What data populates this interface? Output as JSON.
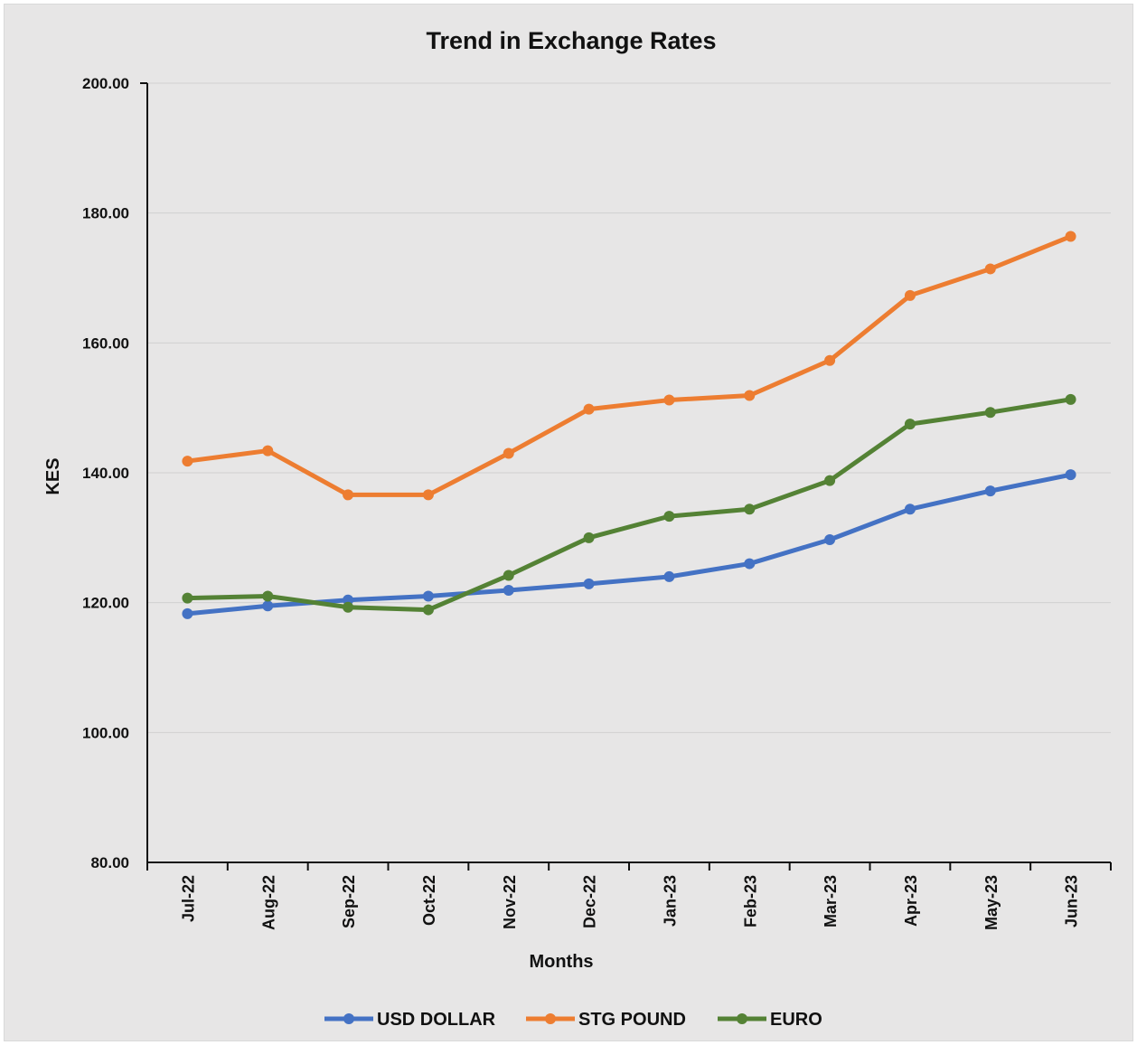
{
  "chart_data": {
    "type": "line",
    "title": "Trend in Exchange Rates",
    "xlabel": "Months",
    "ylabel": "KES",
    "categories": [
      "Jul-22",
      "Aug-22",
      "Sep-22",
      "Oct-22",
      "Nov-22",
      "Dec-22",
      "Jan-23",
      "Feb-23",
      "Mar-23",
      "Apr-23",
      "May-23",
      "Jun-23"
    ],
    "ylim": [
      80,
      200
    ],
    "yticks": [
      "80.00",
      "100.00",
      "120.00",
      "140.00",
      "160.00",
      "180.00",
      "200.00"
    ],
    "grid": true,
    "legend_position": "bottom",
    "series": [
      {
        "name": "USD DOLLAR",
        "color": "#4472c4",
        "values": [
          118.3,
          119.5,
          120.4,
          121.0,
          121.9,
          122.9,
          124.0,
          126.0,
          129.7,
          134.4,
          137.2,
          139.7
        ]
      },
      {
        "name": "STG POUND",
        "color": "#ed7d31",
        "values": [
          141.8,
          143.4,
          136.6,
          136.6,
          143.0,
          149.8,
          151.2,
          151.9,
          157.3,
          167.3,
          171.4,
          176.4
        ]
      },
      {
        "name": "EURO",
        "color": "#548235",
        "values": [
          120.7,
          121.0,
          119.3,
          118.9,
          124.2,
          130.0,
          133.3,
          134.4,
          138.8,
          147.5,
          149.3,
          151.3
        ]
      }
    ]
  }
}
